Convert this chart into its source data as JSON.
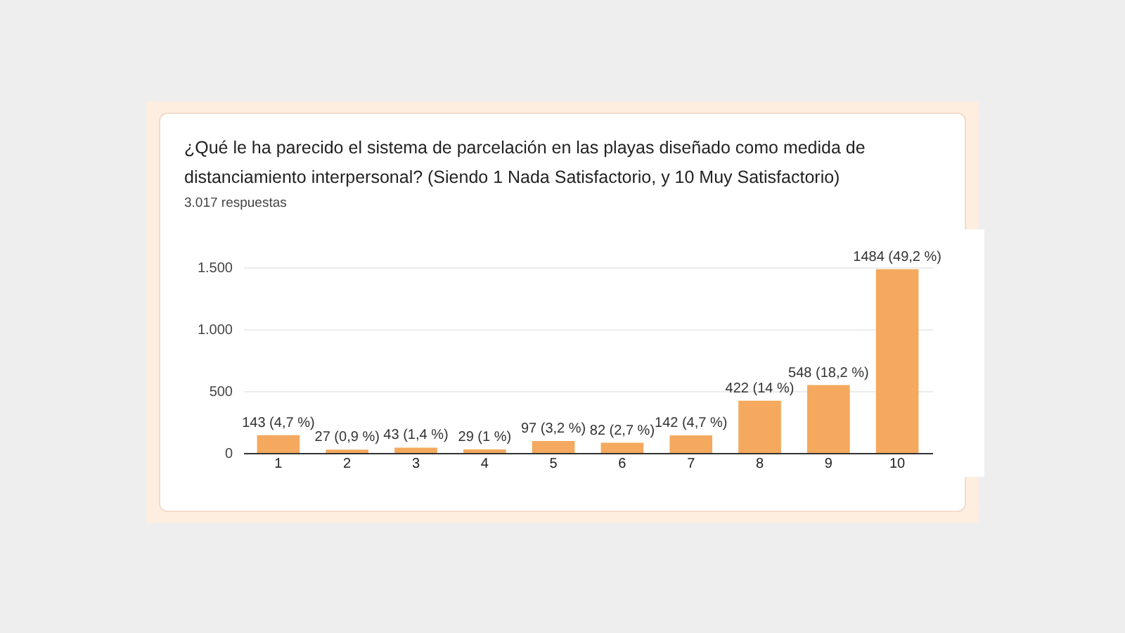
{
  "chart_data": {
    "type": "bar",
    "title": "¿Qué le ha parecido el sistema de parcelación en las playas diseñado como medida de distanciamiento interpersonal? (Siendo 1 Nada Satisfactorio, y 10 Muy Satisfactorio)",
    "subtitle": "3.017 respuestas",
    "categories": [
      "1",
      "2",
      "3",
      "4",
      "5",
      "6",
      "7",
      "8",
      "9",
      "10"
    ],
    "values": [
      143,
      27,
      43,
      29,
      97,
      82,
      142,
      422,
      548,
      1484
    ],
    "value_labels": [
      "143 (4,7 %)",
      "27 (0,9 %)",
      "43 (1,4 %)",
      "29 (1 %)",
      "97 (3,2 %)",
      "82 (2,7 %)",
      "142 (4,7 %)",
      "422 (14 %)",
      "548 (18,2 %)",
      "1484 (49,2 %)"
    ],
    "color": "#f4a95e",
    "ylim": [
      0,
      1500
    ],
    "yticks": [
      {
        "value": 0,
        "label": "0"
      },
      {
        "value": 500,
        "label": "500"
      },
      {
        "value": 1000,
        "label": "1.000"
      },
      {
        "value": 1500,
        "label": "1.500"
      }
    ],
    "grid": "y"
  }
}
